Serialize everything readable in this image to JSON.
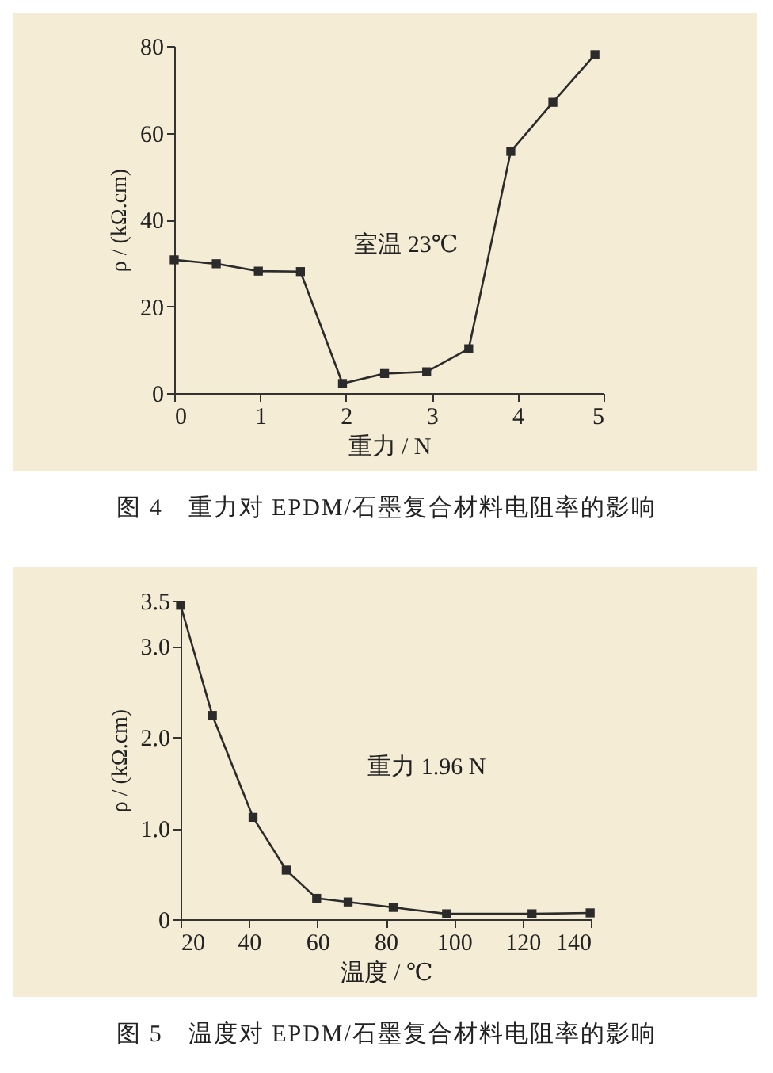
{
  "chart_data": [
    {
      "type": "line",
      "title": "图 4　重力对 EPDM/石墨复合材料电阻率的影响",
      "xlabel": "重力 / N",
      "ylabel": "ρ / (kΩ.cm)",
      "annotations": [
        "室温 23℃"
      ],
      "x": [
        0,
        0.49,
        0.98,
        1.47,
        1.96,
        2.45,
        2.94,
        3.43,
        3.92,
        4.41,
        4.9
      ],
      "series": [
        {
          "color": "#2b2b2b",
          "values": [
            30.7,
            29.8,
            28.1,
            28,
            2.2,
            4.5,
            4.9,
            10.2,
            55.7,
            67,
            78
          ]
        }
      ],
      "xlim": [
        0,
        5
      ],
      "xticks": [
        0,
        1,
        2,
        3,
        4,
        5
      ],
      "ylim": [
        0,
        80
      ],
      "yticks": [
        0,
        20,
        40,
        60,
        80
      ],
      "marker": "square",
      "line_style": "solid"
    },
    {
      "type": "line",
      "title": "图 5　温度对 EPDM/石墨复合材料电阻率的影响",
      "xlabel": "温度 / ℃",
      "ylabel": "ρ / (kΩ.cm)",
      "annotations": [
        "重力 1.96 N"
      ],
      "x": [
        20,
        29.3,
        41.2,
        50.9,
        59.8,
        69,
        82.2,
        97.8,
        122.8,
        139.8
      ],
      "series": [
        {
          "color": "#2b2b2b",
          "values": [
            3.45,
            2.24,
            1.12,
            0.54,
            0.23,
            0.19,
            0.13,
            0.06,
            0.06,
            0.07
          ]
        }
      ],
      "xlim": [
        20,
        140
      ],
      "xticks": [
        20,
        40,
        60,
        80,
        100,
        120,
        140
      ],
      "ylim": [
        0,
        3.5
      ],
      "yticks": [
        0,
        {
          "value": 1,
          "label": "1.0"
        },
        {
          "value": 2,
          "label": "2.0"
        },
        {
          "value": 3,
          "label": "3.0"
        },
        3.5
      ],
      "marker": "square",
      "line_style": "solid"
    }
  ]
}
